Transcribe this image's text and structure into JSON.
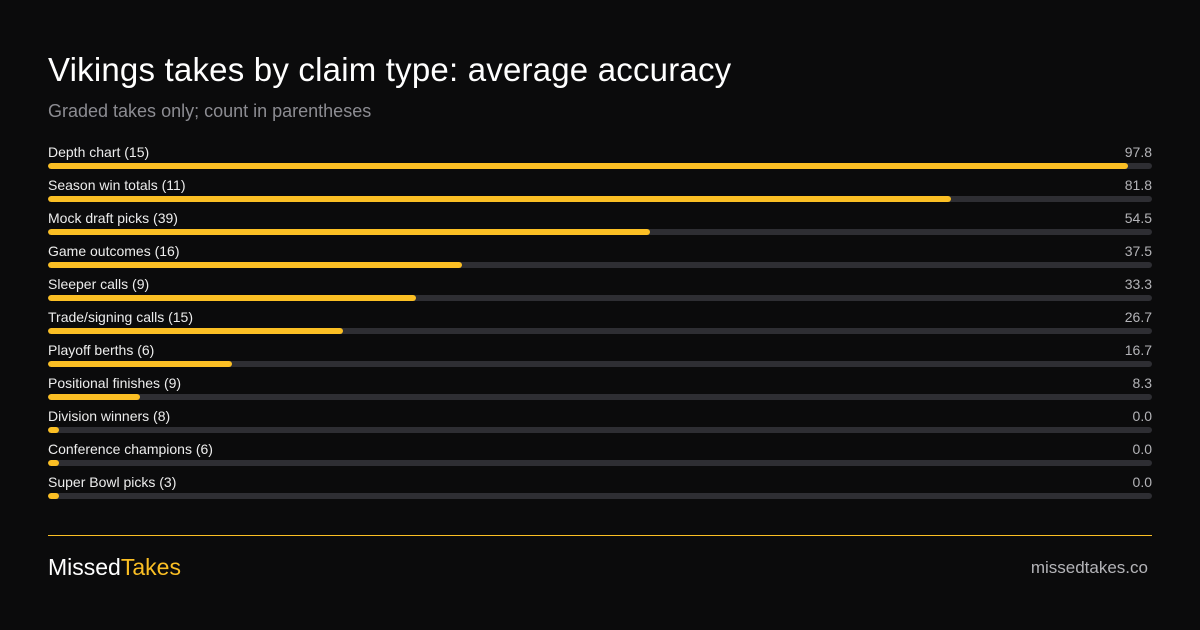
{
  "header": {
    "title": "Vikings takes by claim type: average accuracy",
    "subtitle": "Graded takes only; count in parentheses"
  },
  "footer": {
    "brand_part1": "Missed",
    "brand_part2": "Takes",
    "site": "missedtakes.co"
  },
  "colors": {
    "background": "#0b0b0c",
    "accent": "#fbbf24",
    "track": "#2e2e33"
  },
  "chart_data": {
    "type": "bar",
    "orientation": "horizontal",
    "title": "Vikings takes by claim type: average accuracy",
    "subtitle": "Graded takes only; count in parentheses",
    "xlim": [
      0,
      100
    ],
    "grid": false,
    "categories": [
      "Depth chart (15)",
      "Season win totals (11)",
      "Mock draft picks (39)",
      "Game outcomes (16)",
      "Sleeper calls (9)",
      "Trade/signing calls (15)",
      "Playoff berths (6)",
      "Positional finishes (9)",
      "Division winners (8)",
      "Conference champions (6)",
      "Super Bowl picks (3)"
    ],
    "values": [
      97.8,
      81.8,
      54.5,
      37.5,
      33.3,
      26.7,
      16.7,
      8.3,
      0.0,
      0.0,
      0.0
    ],
    "value_labels": [
      "97.8",
      "81.8",
      "54.5",
      "37.5",
      "33.3",
      "26.7",
      "16.7",
      "8.3",
      "0.0",
      "0.0",
      "0.0"
    ]
  }
}
